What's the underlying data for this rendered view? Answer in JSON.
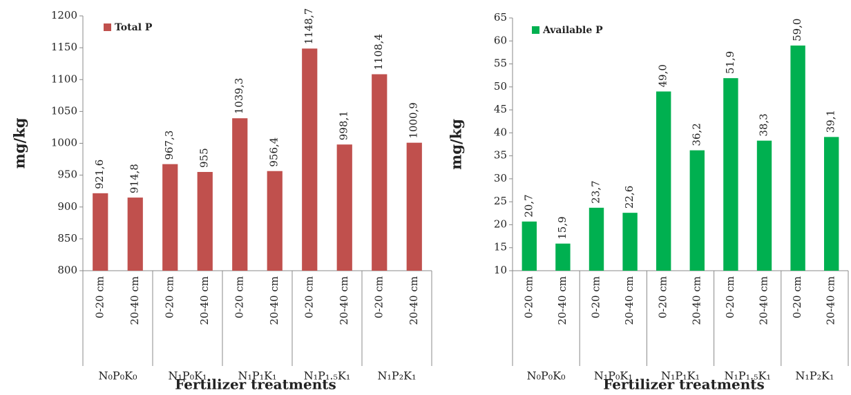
{
  "chart_data": [
    {
      "type": "bar",
      "y_label": "mg/kg",
      "x_label": "Fertilizer treatments",
      "categories": [
        "0-20 cm",
        "20-40 cm",
        "0-20 cm",
        "20-40 cm",
        "0-20 cm",
        "20-40 cm",
        "0-20 cm",
        "20-40 cm",
        "0-20 cm",
        "20-40 cm"
      ],
      "groups": [
        "N₀P₀K₀",
        "N₁P₀K₁",
        "N₁P₁K₁",
        "N₁P₁.₅K₁",
        "N₁P₂K₁"
      ],
      "series": [
        {
          "name": "Total P",
          "color": "#c0504d",
          "values": [
            921.6,
            914.8,
            967.3,
            955,
            1039.3,
            956.4,
            1148.7,
            998.1,
            1108.4,
            1000.9
          ],
          "value_labels": [
            "921,6",
            "914,8",
            "967,3",
            "955",
            "1039,3",
            "956,4",
            "1148,7",
            "998,1",
            "1108,4",
            "1000,9"
          ]
        }
      ],
      "ylim": [
        800,
        1200
      ],
      "yticks": [
        800,
        850,
        900,
        950,
        1000,
        1050,
        1100,
        1150,
        1200
      ]
    },
    {
      "type": "bar",
      "y_label": "mg/kg",
      "x_label": "Fertilizer treatments",
      "categories": [
        "0-20 cm",
        "20-40 cm",
        "0-20 cm",
        "20-40 cm",
        "0-20 cm",
        "20-40 cm",
        "0-20 cm",
        "20-40 cm",
        "0-20 cm",
        "20-40 cm"
      ],
      "groups": [
        "N₀P₀K₀",
        "N₁P₀K₁",
        "N₁P₁K₁",
        "N₁P₁.₅K₁",
        "N₁P₂K₁"
      ],
      "series": [
        {
          "name": "Available P",
          "color": "#00b050",
          "values": [
            20.7,
            15.9,
            23.7,
            22.6,
            49.0,
            36.2,
            51.9,
            38.3,
            59.0,
            39.1
          ],
          "value_labels": [
            "20,7",
            "15,9",
            "23,7",
            "22,6",
            "49,0",
            "36,2",
            "51,9",
            "38,3",
            "59,0",
            "39,1"
          ]
        }
      ],
      "ylim": [
        10,
        65
      ],
      "yticks": [
        10,
        15,
        20,
        25,
        30,
        35,
        40,
        45,
        50,
        55,
        60,
        65
      ]
    }
  ]
}
